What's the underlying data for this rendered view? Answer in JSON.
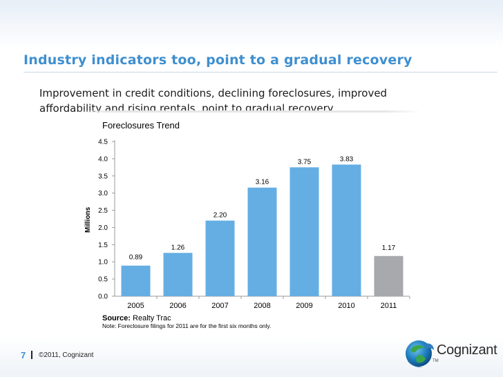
{
  "slide": {
    "title": "Industry indicators too, point to a gradual recovery",
    "subtitle": "Improvement in credit conditions, declining foreclosures, improved affordability and rising rentals, point to gradual recovery.",
    "page_number": "7",
    "copyright": "©2011, Cognizant",
    "logo_text": "Cognizant",
    "logo_tm": "TM"
  },
  "colors": {
    "accent": "#3e8fd0",
    "bar_blue": "#64aee4",
    "bar_gray": "#a7a9ad"
  },
  "chart_data": {
    "type": "bar",
    "title": "Foreclosures Trend",
    "ylabel": "Millions",
    "xlabel": "",
    "categories": [
      "2005",
      "2006",
      "2007",
      "2008",
      "2009",
      "2010",
      "2011"
    ],
    "values": [
      0.89,
      1.26,
      2.2,
      3.16,
      3.75,
      3.83,
      1.17
    ],
    "value_labels": [
      "0.89",
      "1.26",
      "2.20",
      "3.16",
      "3.75",
      "3.83",
      "1.17"
    ],
    "bar_colors": [
      "#64aee4",
      "#64aee4",
      "#64aee4",
      "#64aee4",
      "#64aee4",
      "#64aee4",
      "#a7a9ad"
    ],
    "ylim": [
      0,
      4.5
    ],
    "yticks": [
      0,
      0.5,
      1,
      1.5,
      2,
      2.5,
      3,
      3.5,
      4,
      4.5
    ],
    "ytick_labels": [
      "0.0",
      "0.5",
      "1.0",
      "1.5",
      "2.0",
      "2.5",
      "3.0",
      "3.5",
      "4.0",
      "4.5"
    ],
    "grid": false,
    "source_label": "Source:",
    "source_value": " Realty Trac",
    "note": "Note: Foreclosure filings for 2011 are for the first six months only."
  }
}
